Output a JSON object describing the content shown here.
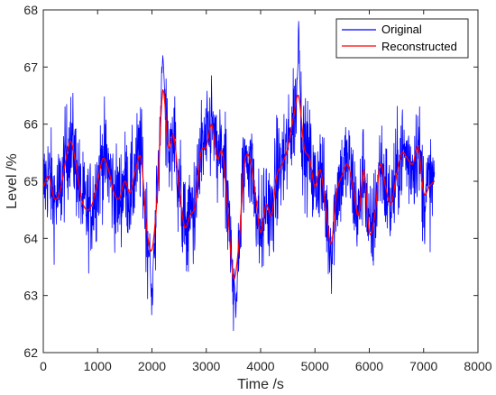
{
  "chart_data": {
    "type": "line",
    "title": "",
    "xlabel": "Time /s",
    "ylabel": "Level /%",
    "xlim": [
      0,
      8000
    ],
    "ylim": [
      62,
      68
    ],
    "xticks": [
      0,
      1000,
      2000,
      3000,
      4000,
      5000,
      6000,
      7000,
      8000
    ],
    "yticks": [
      62,
      63,
      64,
      65,
      66,
      67,
      68
    ],
    "grid": false,
    "legend_position": "top-right",
    "series": [
      {
        "name": "Original",
        "color": "#0000ff",
        "note_style": "dense noisy signal",
        "x_range": [
          0,
          7200
        ],
        "noise_amplitude": 0.8,
        "peaks": [
          {
            "x": 2200,
            "max": 67.6
          },
          {
            "x": 4700,
            "max": 67.8
          },
          {
            "x": 3550,
            "min": 62.5
          },
          {
            "x": 2000,
            "min": 62.5
          }
        ]
      },
      {
        "name": "Reconstructed",
        "color": "#ff0000",
        "x": [
          0,
          100,
          200,
          300,
          400,
          500,
          600,
          700,
          800,
          900,
          1000,
          1100,
          1200,
          1300,
          1400,
          1500,
          1600,
          1700,
          1800,
          1900,
          2000,
          2100,
          2200,
          2300,
          2400,
          2500,
          2600,
          2700,
          2800,
          2900,
          3000,
          3100,
          3200,
          3300,
          3400,
          3500,
          3600,
          3700,
          3800,
          3900,
          4000,
          4100,
          4200,
          4300,
          4400,
          4500,
          4600,
          4700,
          4800,
          4900,
          5000,
          5100,
          5200,
          5300,
          5400,
          5500,
          5600,
          5700,
          5800,
          5900,
          6000,
          6100,
          6200,
          6300,
          6400,
          6500,
          6600,
          6700,
          6800,
          6900,
          7000,
          7100,
          7200
        ],
        "y": [
          64.9,
          65.1,
          64.7,
          64.8,
          65.3,
          65.7,
          65.3,
          64.7,
          64.5,
          64.6,
          65.0,
          65.4,
          65.2,
          64.8,
          64.7,
          65.0,
          64.8,
          65.2,
          65.4,
          64.2,
          63.8,
          64.8,
          66.6,
          65.6,
          65.8,
          64.9,
          64.2,
          64.4,
          64.6,
          65.5,
          65.6,
          66.0,
          65.4,
          65.5,
          64.4,
          63.3,
          63.9,
          65.3,
          65.4,
          64.8,
          64.1,
          64.6,
          64.4,
          65.1,
          65.3,
          65.6,
          66.1,
          66.5,
          65.6,
          65.4,
          64.9,
          65.2,
          64.5,
          63.9,
          64.8,
          65.1,
          65.3,
          64.9,
          64.4,
          65.2,
          64.1,
          64.4,
          65.3,
          64.9,
          64.6,
          65.1,
          65.5,
          65.4,
          65.3,
          65.6,
          64.8,
          64.9,
          65.0
        ]
      }
    ]
  }
}
